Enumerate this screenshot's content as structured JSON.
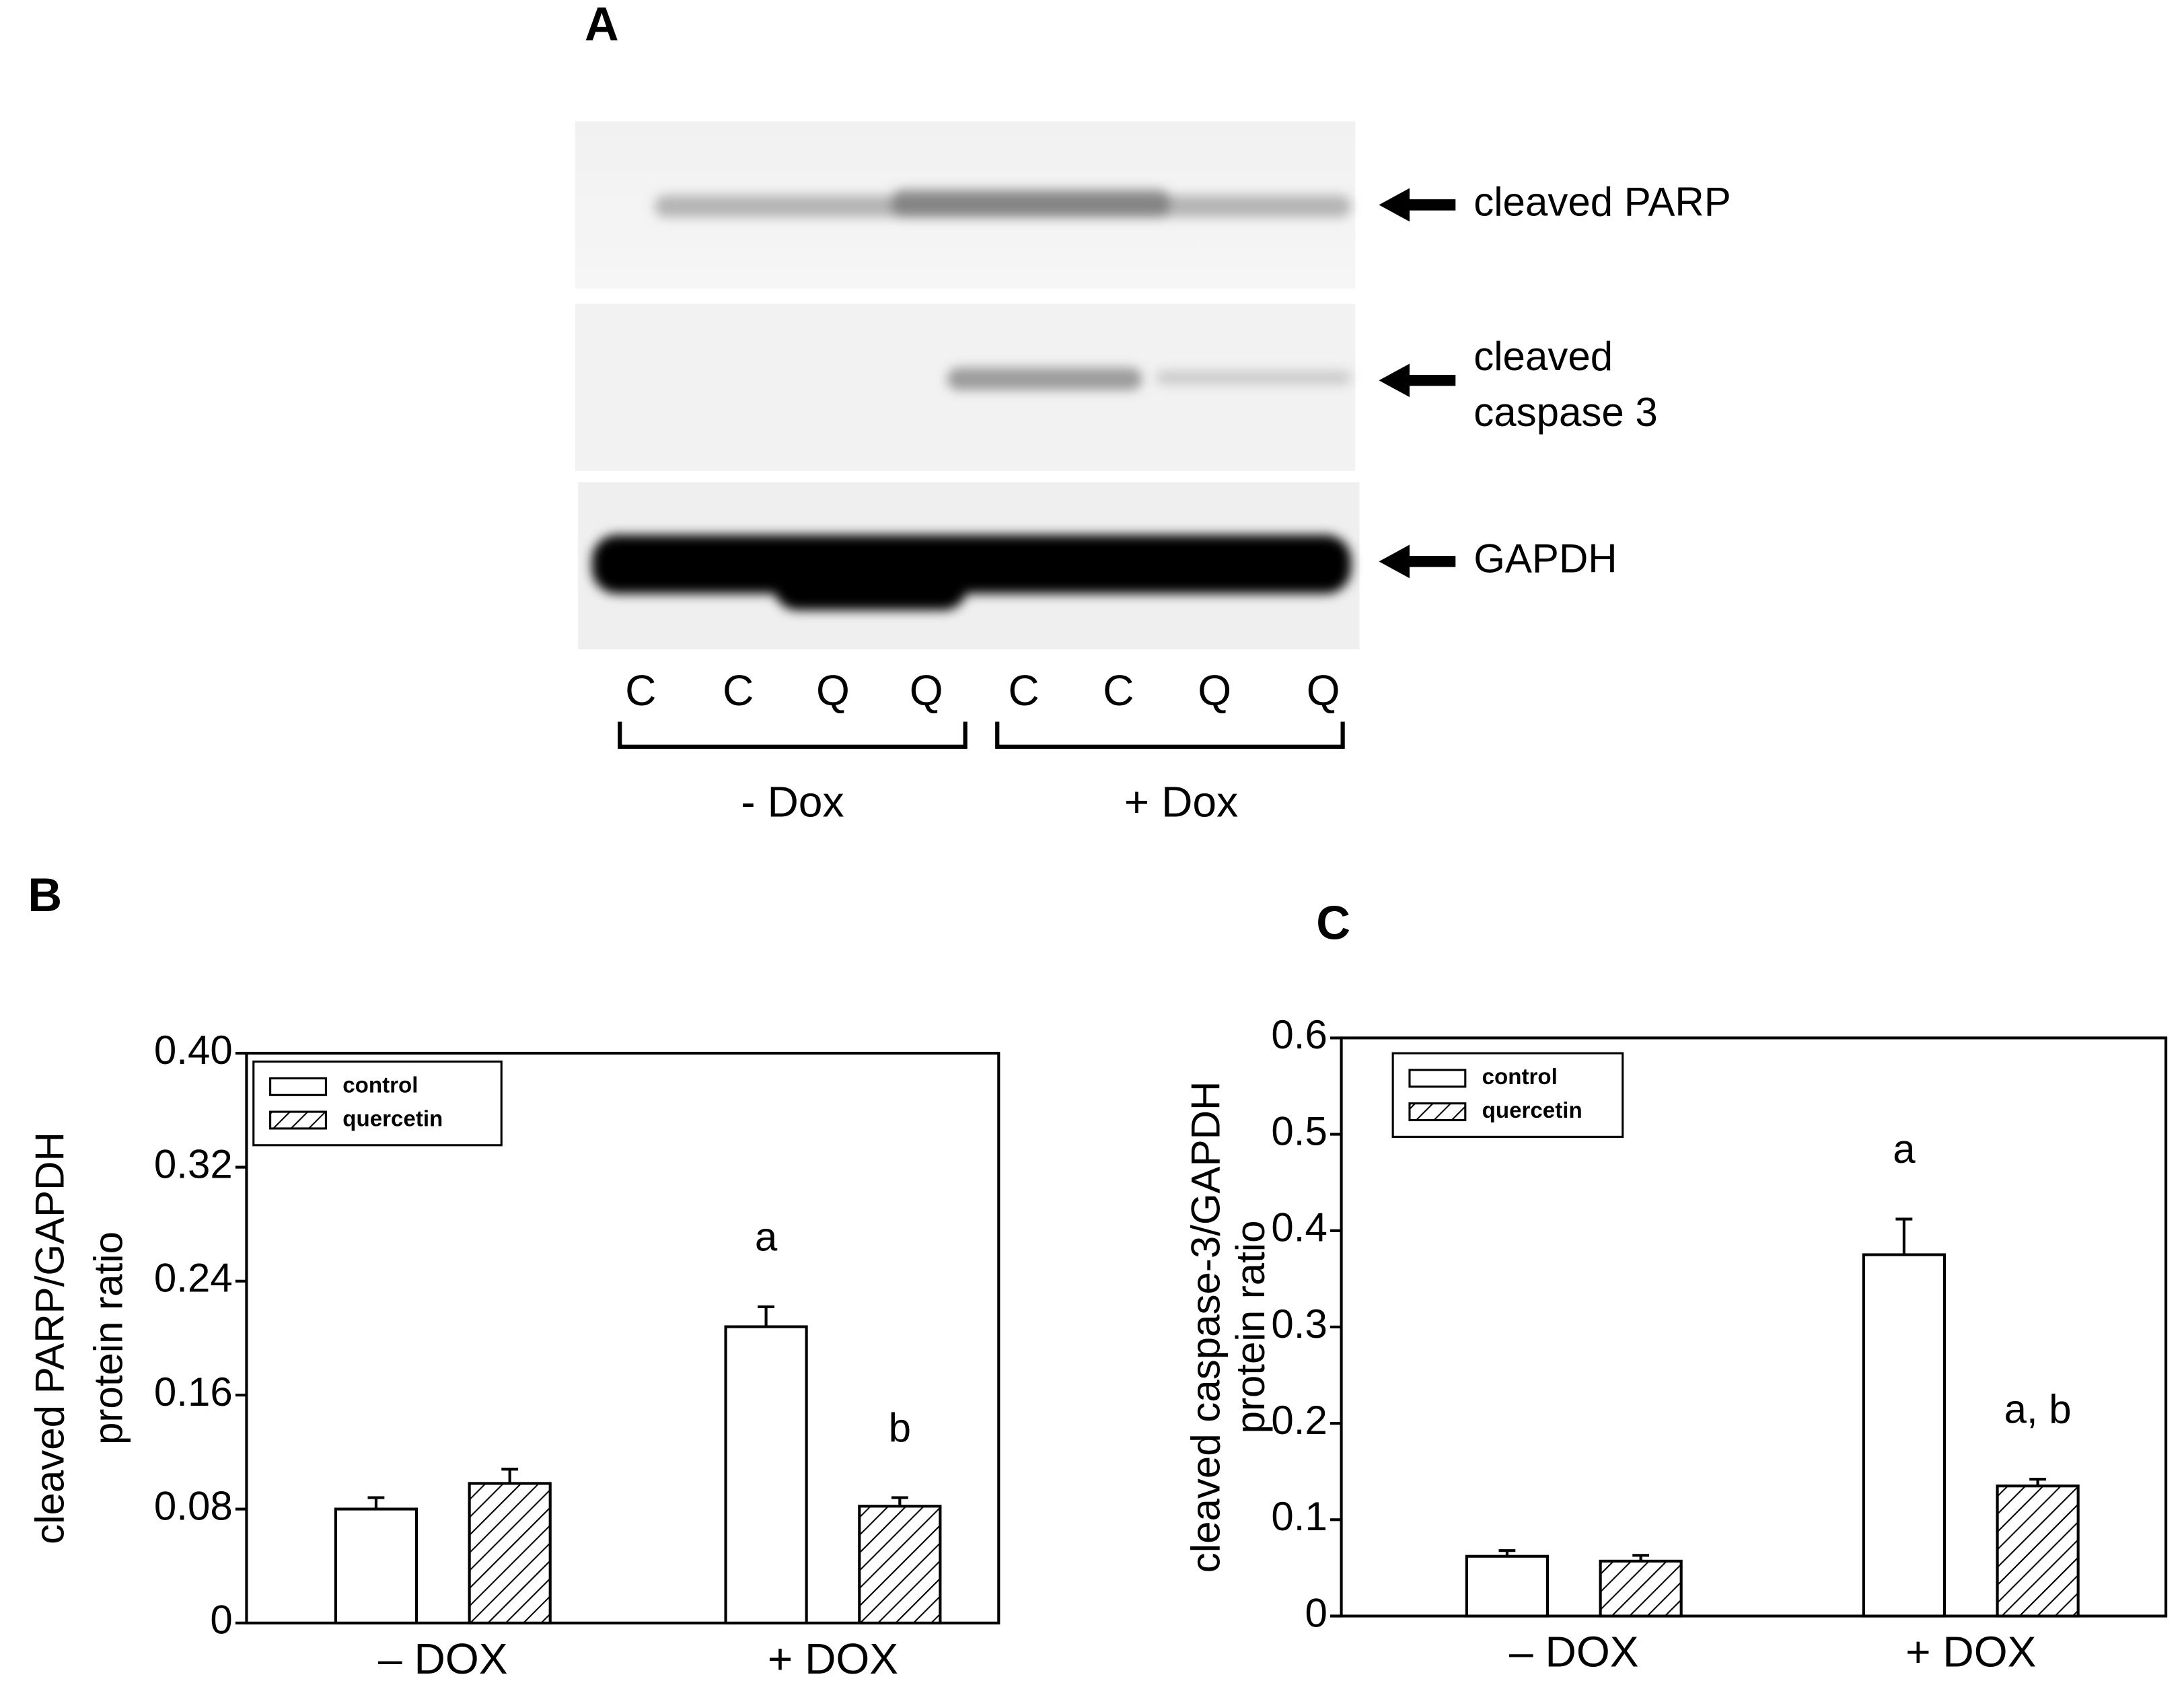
{
  "blot": {
    "panel_label": "A",
    "bands": [
      [
        "cleaved PARP"
      ],
      [
        "cleaved",
        "caspase 3"
      ],
      [
        "GAPDH"
      ]
    ],
    "lanes": [
      "C",
      "C",
      "Q",
      "Q",
      "C",
      "C",
      "Q",
      "Q"
    ],
    "groups": [
      "- Dox",
      "+ Dox"
    ]
  },
  "chart_data": [
    {
      "type": "bar",
      "panel_label": "B",
      "y_label": [
        "cleaved PARP/GAPDH",
        "protein ratio"
      ],
      "categories": [
        "– DOX",
        "+ DOX"
      ],
      "series": [
        {
          "name": "control",
          "color": "#ffffff",
          "pattern": "none",
          "values": [
            0.08,
            0.208
          ],
          "errors": [
            0.008,
            0.014
          ]
        },
        {
          "name": "quercetin",
          "color": "#ffffff",
          "pattern": "hatch",
          "values": [
            0.098,
            0.082
          ],
          "errors": [
            0.01,
            0.006
          ]
        }
      ],
      "annotations": [
        {
          "text": "a",
          "series": 0,
          "category": 1
        },
        {
          "text": "b",
          "series": 1,
          "category": 1
        }
      ],
      "ylim": [
        0,
        0.4
      ],
      "yticks": [
        0,
        0.08,
        0.16,
        0.24,
        0.32,
        {
          "value": 0.4,
          "label": "0.40"
        }
      ],
      "legend": "upper left"
    },
    {
      "type": "bar",
      "panel_label": "C",
      "y_label": [
        "cleaved caspase-3/GAPDH",
        "protein ratio"
      ],
      "categories": [
        "– DOX",
        "+ DOX"
      ],
      "series": [
        {
          "name": "control",
          "color": "#ffffff",
          "pattern": "none",
          "values": [
            0.062,
            0.375
          ],
          "errors": [
            0.006,
            0.037
          ]
        },
        {
          "name": "quercetin",
          "color": "#ffffff",
          "pattern": "hatch",
          "values": [
            0.057,
            0.135
          ],
          "errors": [
            0.006,
            0.007
          ]
        }
      ],
      "annotations": [
        {
          "text": "a",
          "series": 0,
          "category": 1
        },
        {
          "text": "a, b",
          "series": 1,
          "category": 1
        }
      ],
      "ylim": [
        0,
        0.6
      ],
      "yticks": [
        0,
        0.1,
        0.2,
        0.3,
        0.4,
        0.5,
        0.6
      ],
      "legend": "upper left"
    }
  ]
}
